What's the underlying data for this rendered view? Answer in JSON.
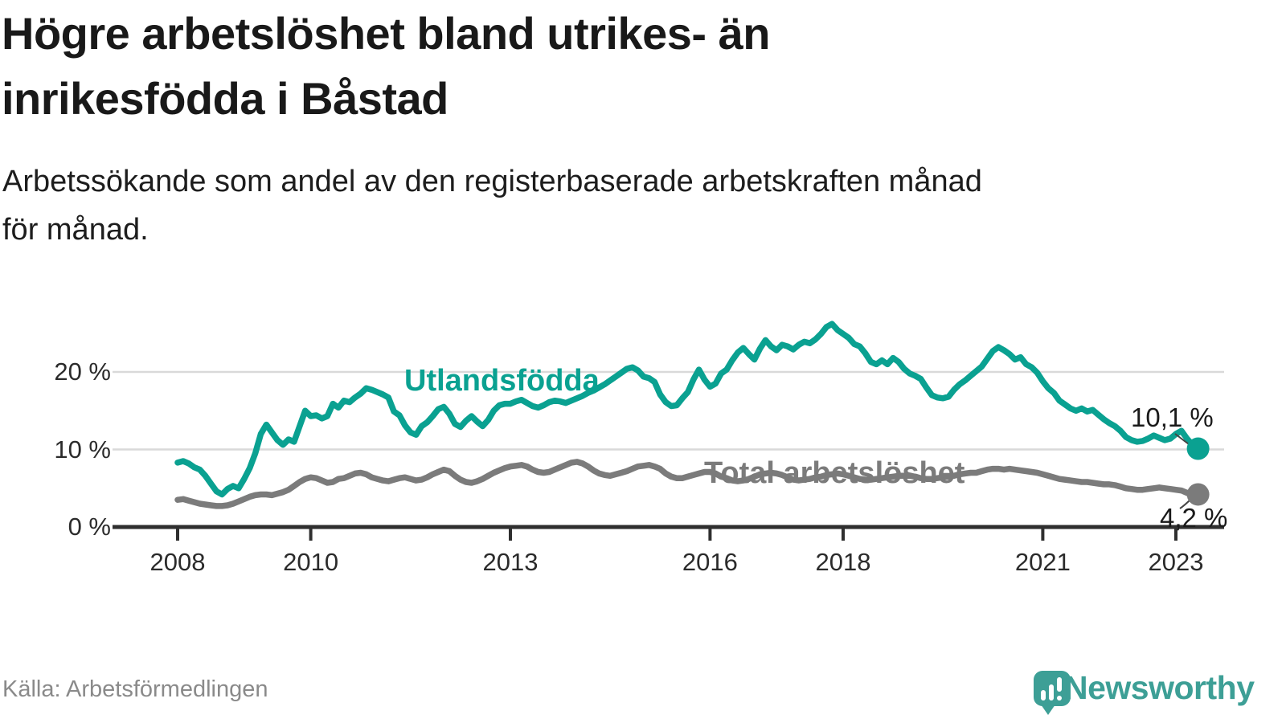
{
  "chart_data": {
    "type": "line",
    "title": "Högre arbetslöshet bland utrikes- än\ninrikesfödda i Båstad",
    "subtitle": "Arbetssökande som andel av den registerbaserade arbetskraften månad\nför månad.",
    "xlabel": "",
    "ylabel": "",
    "grid": true,
    "legend_position": "inline-labels",
    "x_unit": "year-monthly",
    "x_start": 2008.0,
    "x_step": 0.0833,
    "x_ticks": [
      2008,
      2010,
      2013,
      2016,
      2018,
      2021,
      2023
    ],
    "y_ticks": [
      {
        "value": 0,
        "label": "0 %"
      },
      {
        "value": 10,
        "label": "10 %"
      },
      {
        "value": 20,
        "label": "20 %"
      }
    ],
    "ylim": [
      0,
      28
    ],
    "xlim": [
      2007.0,
      2023.75
    ],
    "series": [
      {
        "id": "utlandsfodda",
        "name": "Utlandsfödda",
        "color": "#0aa191",
        "end_label": "10,1 %",
        "end_value": 10.1,
        "values_monthly": [
          8.3,
          8.5,
          8.2,
          7.7,
          7.4,
          6.6,
          5.6,
          4.6,
          4.2,
          4.9,
          5.3,
          5.0,
          6.2,
          7.6,
          9.5,
          12.0,
          13.2,
          12.2,
          11.2,
          10.6,
          11.3,
          11.0,
          13.0,
          15.0,
          14.3,
          14.4,
          14.0,
          14.3,
          15.9,
          15.4,
          16.3,
          16.1,
          16.7,
          17.2,
          17.9,
          17.7,
          17.4,
          17.1,
          16.7,
          14.9,
          14.4,
          13.1,
          12.2,
          11.9,
          13.0,
          13.5,
          14.3,
          15.2,
          15.5,
          14.6,
          13.3,
          12.9,
          13.7,
          14.3,
          13.6,
          13.0,
          13.8,
          15.0,
          15.7,
          15.9,
          15.9,
          16.2,
          16.4,
          16.0,
          15.6,
          15.4,
          15.7,
          16.1,
          16.3,
          16.2,
          16.0,
          16.3,
          16.6,
          16.9,
          17.3,
          17.6,
          18.0,
          18.4,
          18.9,
          19.4,
          19.9,
          20.4,
          20.6,
          20.2,
          19.4,
          19.2,
          18.7,
          17.1,
          16.1,
          15.6,
          15.7,
          16.6,
          17.4,
          19.0,
          20.3,
          19.0,
          18.1,
          18.5,
          19.8,
          20.3,
          21.5,
          22.5,
          23.1,
          22.3,
          21.6,
          23.0,
          24.1,
          23.3,
          22.8,
          23.5,
          23.3,
          22.9,
          23.5,
          23.9,
          23.7,
          24.2,
          24.9,
          25.8,
          26.2,
          25.4,
          24.9,
          24.4,
          23.6,
          23.3,
          22.4,
          21.3,
          21.0,
          21.5,
          21.0,
          21.8,
          21.3,
          20.4,
          19.8,
          19.5,
          19.1,
          18.0,
          17.0,
          16.7,
          16.6,
          16.8,
          17.7,
          18.4,
          18.9,
          19.5,
          20.1,
          20.7,
          21.7,
          22.7,
          23.2,
          22.8,
          22.3,
          21.6,
          21.9,
          21.0,
          20.6,
          19.9,
          18.8,
          17.9,
          17.3,
          16.3,
          15.8,
          15.3,
          15.0,
          15.3,
          14.9,
          15.1,
          14.5,
          13.9,
          13.4,
          13.0,
          12.4,
          11.6,
          11.2,
          11.0,
          11.1,
          11.4,
          11.8,
          11.5,
          11.2,
          11.4,
          12.0,
          12.4,
          11.4,
          10.6,
          10.1
        ]
      },
      {
        "id": "total",
        "name": "Total arbetslöshet",
        "color": "#7b7b7b",
        "end_label": "4,2 %",
        "end_value": 4.2,
        "values_monthly": [
          3.5,
          3.6,
          3.4,
          3.2,
          3.0,
          2.9,
          2.8,
          2.7,
          2.7,
          2.8,
          3.0,
          3.3,
          3.6,
          3.9,
          4.1,
          4.2,
          4.2,
          4.1,
          4.3,
          4.5,
          4.8,
          5.3,
          5.8,
          6.2,
          6.4,
          6.3,
          6.0,
          5.7,
          5.8,
          6.2,
          6.3,
          6.6,
          6.9,
          7.0,
          6.8,
          6.4,
          6.2,
          6.0,
          5.9,
          6.1,
          6.3,
          6.4,
          6.2,
          6.0,
          6.1,
          6.4,
          6.8,
          7.1,
          7.4,
          7.2,
          6.6,
          6.1,
          5.8,
          5.7,
          5.9,
          6.2,
          6.6,
          7.0,
          7.3,
          7.6,
          7.8,
          7.9,
          8.0,
          7.8,
          7.4,
          7.1,
          7.0,
          7.1,
          7.4,
          7.7,
          8.0,
          8.3,
          8.4,
          8.2,
          7.8,
          7.3,
          6.9,
          6.7,
          6.6,
          6.8,
          7.0,
          7.2,
          7.5,
          7.8,
          7.9,
          8.0,
          7.8,
          7.5,
          6.9,
          6.5,
          6.3,
          6.3,
          6.5,
          6.7,
          6.9,
          7.1,
          7.1,
          6.9,
          6.5,
          6.3,
          6.0,
          5.9,
          6.0,
          6.2,
          6.5,
          6.8,
          6.9,
          7.0,
          6.9,
          6.7,
          6.4,
          6.1,
          6.0,
          6.1,
          6.2,
          6.4,
          6.5,
          6.7,
          6.8,
          6.9,
          6.8,
          6.6,
          6.4,
          6.2,
          6.1,
          6.1,
          6.2,
          6.3,
          6.4,
          6.5,
          6.6,
          6.6,
          6.6,
          6.5,
          6.3,
          6.2,
          6.2,
          6.3,
          6.4,
          6.5,
          6.6,
          6.8,
          6.9,
          7.0,
          7.0,
          7.2,
          7.4,
          7.5,
          7.5,
          7.4,
          7.5,
          7.4,
          7.3,
          7.2,
          7.1,
          7.0,
          6.8,
          6.6,
          6.4,
          6.2,
          6.1,
          6.0,
          5.9,
          5.8,
          5.8,
          5.7,
          5.6,
          5.5,
          5.5,
          5.4,
          5.2,
          5.0,
          4.9,
          4.8,
          4.8,
          4.9,
          5.0,
          5.1,
          5.0,
          4.9,
          4.8,
          4.7,
          4.4,
          4.1,
          4.2
        ]
      }
    ],
    "colors": {
      "grid": "#d9d9d9",
      "axis": "#2f2f2f",
      "background": "#ffffff",
      "annotation_text": "#1a1a1a"
    }
  },
  "footer": {
    "source": "Källa: Arbetsförmedlingen",
    "logo_text": "Newsworthy",
    "logo_color": "#3d9f96"
  }
}
